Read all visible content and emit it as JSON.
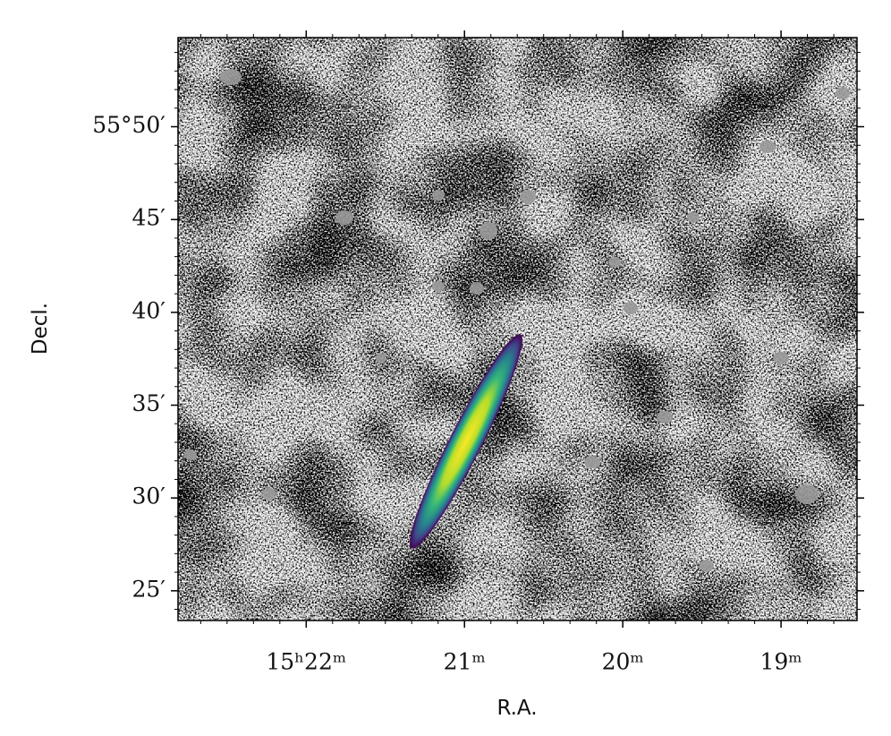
{
  "chart_data": {
    "type": "image",
    "xlabel": "R.A.",
    "ylabel": "Decl.",
    "xlim": [
      22.81,
      18.52
    ],
    "xticks": [
      {
        "value": 22,
        "label": "15ʰ22ᵐ"
      },
      {
        "value": 21,
        "label": "21ᵐ"
      },
      {
        "value": 20,
        "label": "20ᵐ"
      },
      {
        "value": 19,
        "label": "19ᵐ"
      }
    ],
    "ylim": [
      23.4,
      54.8
    ],
    "yticks": [
      {
        "value": 50,
        "label": "55°50′"
      },
      {
        "value": 45,
        "label": "45′"
      },
      {
        "value": 40,
        "label": "40′"
      },
      {
        "value": 35,
        "label": "35′"
      },
      {
        "value": 30,
        "label": "30′"
      },
      {
        "value": 25,
        "label": "25′"
      }
    ]
  }
}
